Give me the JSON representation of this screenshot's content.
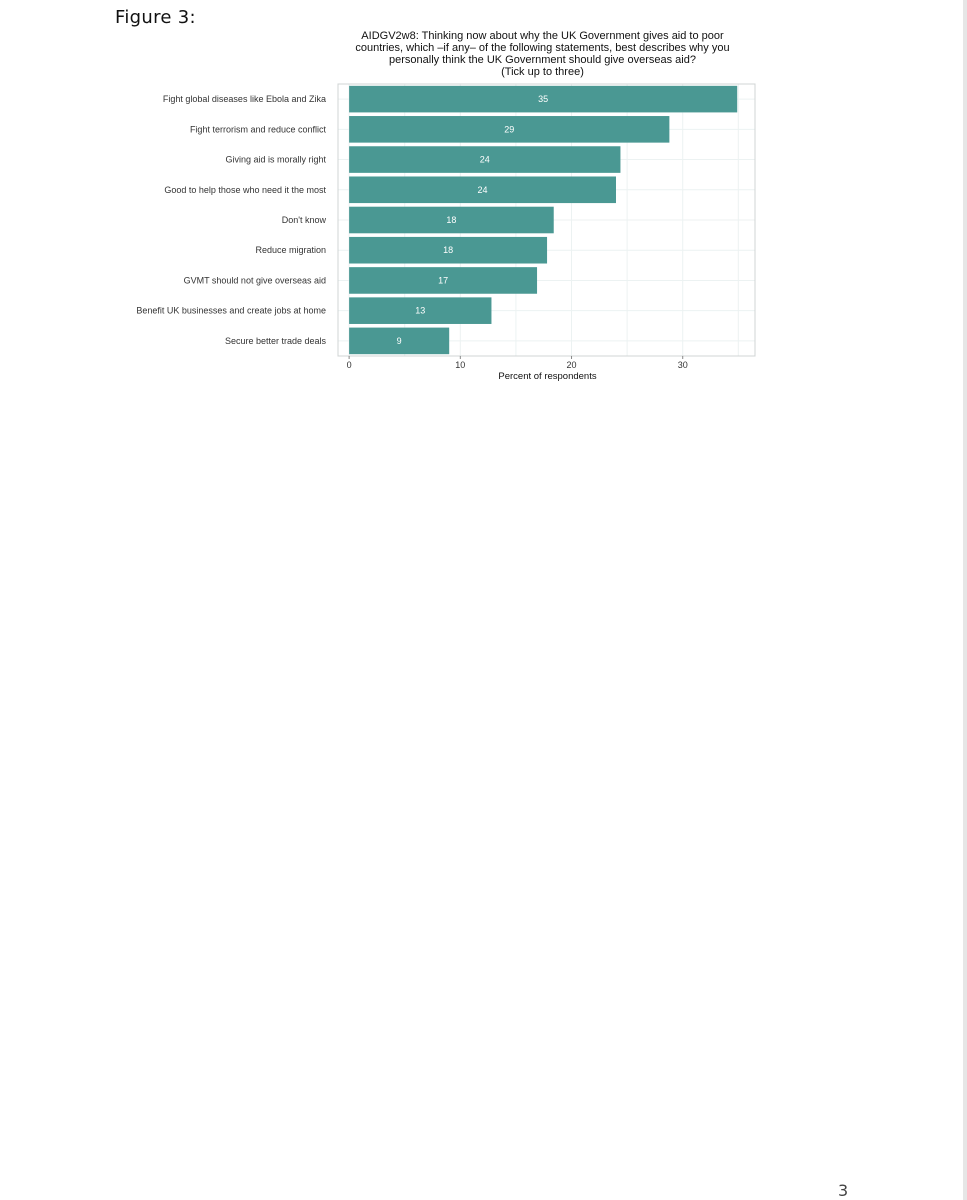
{
  "page": {
    "figure_label": "Figure 3:",
    "page_number": "3"
  },
  "chart_data": {
    "type": "bar",
    "orientation": "horizontal",
    "title_lines": [
      "AIDGV2w8: Thinking now about why the UK Government gives aid to poor",
      "countries, which –if any– of the following statements, best describes why you",
      "personally think the UK Government should give overseas aid?",
      "(Tick up to three)"
    ],
    "categories": [
      "Fight global diseases like Ebola and Zika",
      "Fight terrorism and reduce conflict",
      "Giving aid is morally right",
      "Good to help those who need it the most",
      "Don't know",
      "Reduce migration",
      "GVMT should not give overseas aid",
      "Benefit UK businesses and create jobs at home",
      "Secure better trade deals"
    ],
    "values": [
      34.9,
      28.8,
      24.4,
      24.0,
      18.4,
      17.8,
      16.9,
      12.8,
      9.0
    ],
    "data_labels": [
      "35",
      "29",
      "24",
      "24",
      "18",
      "18",
      "17",
      "13",
      "9"
    ],
    "xlabel": "Percent of respondents",
    "ylabel": "",
    "xlim": [
      -1,
      36.5
    ],
    "xticks": [
      0,
      10,
      20,
      30
    ],
    "grid": true,
    "legend": "none",
    "colors": {
      "bar": "#4a9893",
      "bar_label": "#ffffff",
      "grid": "#ecf2f2",
      "panel_border": "#d0d4d4"
    }
  }
}
